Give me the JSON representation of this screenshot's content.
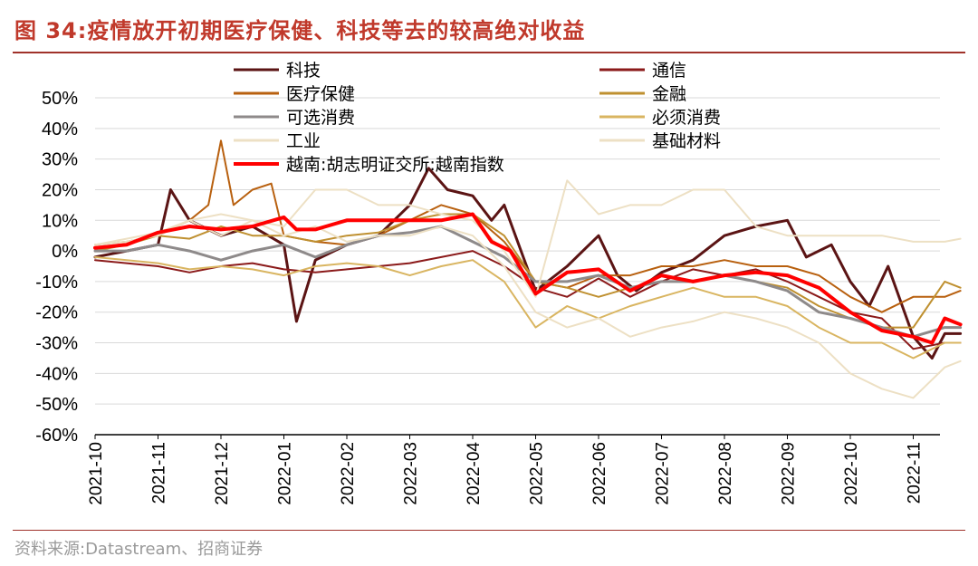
{
  "figure": {
    "title": "图 34:疫情放开初期医疗保健、科技等去的较高绝对收益",
    "source": "资料来源:Datastream、招商证券"
  },
  "colors": {
    "title": "#c0392b",
    "rule": "#a0322a"
  },
  "chart_data": {
    "type": "line",
    "title": "疫情放开初期医疗保健、科技等去的较高绝对收益",
    "xlabel": "",
    "ylabel": "",
    "ylim": [
      -60,
      50
    ],
    "y_ticks": [
      50,
      40,
      30,
      20,
      10,
      0,
      -10,
      -20,
      -30,
      -40,
      -50,
      -60
    ],
    "y_tick_labels": [
      "50%",
      "40%",
      "30%",
      "20%",
      "10%",
      "0%",
      "-10%",
      "-20%",
      "-30%",
      "-40%",
      "-50%",
      "-60%"
    ],
    "x_tick_labels": [
      "2021-10",
      "2021-11",
      "2021-12",
      "2022-01",
      "2022-02",
      "2022-03",
      "2022-04",
      "2022-05",
      "2022-06",
      "2022-07",
      "2022-08",
      "2022-09",
      "2022-10",
      "2022-11"
    ],
    "x_range_months": [
      0,
      13.75
    ],
    "grid": "horizontal",
    "legend_position": "top",
    "series": [
      {
        "name": "科技",
        "color": "#5b1414",
        "width": 3,
        "x": [
          0,
          0.5,
          1.0,
          1.2,
          1.5,
          2.0,
          2.5,
          3.0,
          3.2,
          3.5,
          4.0,
          4.5,
          5.0,
          5.3,
          5.6,
          6.0,
          6.3,
          6.5,
          7.0,
          7.5,
          8.0,
          8.3,
          8.6,
          9.0,
          9.5,
          10.0,
          10.5,
          11.0,
          11.3,
          11.7,
          12.0,
          12.3,
          12.6,
          13.0,
          13.3,
          13.5,
          13.75
        ],
        "values": [
          -2,
          0,
          2,
          20,
          10,
          5,
          8,
          2,
          -23,
          -3,
          2,
          5,
          15,
          27,
          20,
          18,
          10,
          15,
          -13,
          -5,
          5,
          -8,
          -13,
          -7,
          -3,
          5,
          8,
          10,
          -2,
          2,
          -10,
          -18,
          -5,
          -28,
          -35,
          -27,
          -27
        ]
      },
      {
        "name": "通信",
        "color": "#8b1a1a",
        "width": 2,
        "x": [
          0,
          0.5,
          1.0,
          1.5,
          2.0,
          2.5,
          3.0,
          3.5,
          4.0,
          4.5,
          5.0,
          5.5,
          6.0,
          6.5,
          7.0,
          7.5,
          8.0,
          8.5,
          9.0,
          9.5,
          10.0,
          10.5,
          11.0,
          11.5,
          12.0,
          12.5,
          13.0,
          13.5,
          13.75
        ],
        "values": [
          -3,
          -4,
          -5,
          -7,
          -5,
          -4,
          -6,
          -7,
          -6,
          -5,
          -4,
          -2,
          0,
          -5,
          -12,
          -15,
          -9,
          -15,
          -10,
          -6,
          -8,
          -6,
          -10,
          -15,
          -20,
          -22,
          -32,
          -30,
          -30
        ]
      },
      {
        "name": "医疗保健",
        "color": "#b8600f",
        "width": 2,
        "x": [
          0,
          0.5,
          1.0,
          1.5,
          1.8,
          2.0,
          2.2,
          2.5,
          2.8,
          3.0,
          3.5,
          4.0,
          4.5,
          5.0,
          5.5,
          6.0,
          6.5,
          7.0,
          7.5,
          8.0,
          8.5,
          9.0,
          9.5,
          10.0,
          10.5,
          11.0,
          11.5,
          12.0,
          12.5,
          13.0,
          13.5,
          13.75
        ],
        "values": [
          2,
          3,
          5,
          10,
          15,
          36,
          15,
          20,
          22,
          5,
          3,
          2,
          5,
          10,
          15,
          12,
          3,
          -10,
          -12,
          -8,
          -8,
          -5,
          -5,
          -3,
          -5,
          -5,
          -8,
          -15,
          -20,
          -15,
          -15,
          -13
        ]
      },
      {
        "name": "金融",
        "color": "#bf9030",
        "width": 2,
        "x": [
          0,
          0.5,
          1.0,
          1.5,
          2.0,
          2.5,
          3.0,
          3.5,
          4.0,
          4.5,
          5.0,
          5.5,
          6.0,
          6.5,
          7.0,
          7.5,
          8.0,
          8.5,
          9.0,
          9.5,
          10.0,
          10.5,
          11.0,
          11.5,
          12.0,
          12.5,
          13.0,
          13.5,
          13.75
        ],
        "values": [
          0,
          2,
          5,
          4,
          8,
          5,
          5,
          3,
          5,
          6,
          10,
          12,
          12,
          5,
          -10,
          -12,
          -15,
          -12,
          -10,
          -10,
          -8,
          -10,
          -12,
          -18,
          -22,
          -25,
          -25,
          -10,
          -12
        ]
      },
      {
        "name": "可选消费",
        "color": "#8e8a8a",
        "width": 3,
        "x": [
          0,
          0.5,
          1.0,
          1.5,
          2.0,
          2.5,
          3.0,
          3.5,
          4.0,
          4.5,
          5.0,
          5.5,
          6.0,
          6.5,
          7.0,
          7.5,
          8.0,
          8.5,
          9.0,
          9.5,
          10.0,
          10.5,
          11.0,
          11.5,
          12.0,
          12.5,
          13.0,
          13.5,
          13.75
        ],
        "values": [
          0,
          0,
          2,
          0,
          -3,
          0,
          2,
          -2,
          2,
          5,
          6,
          8,
          3,
          -2,
          -10,
          -10,
          -8,
          -12,
          -10,
          -10,
          -8,
          -10,
          -13,
          -20,
          -22,
          -25,
          -28,
          -25,
          -25
        ]
      },
      {
        "name": "必须消费",
        "color": "#d9b561",
        "width": 2,
        "x": [
          0,
          0.5,
          1.0,
          1.5,
          2.0,
          2.5,
          3.0,
          3.5,
          4.0,
          4.5,
          5.0,
          5.5,
          6.0,
          6.5,
          7.0,
          7.5,
          8.0,
          8.5,
          9.0,
          9.5,
          10.0,
          10.5,
          11.0,
          11.5,
          12.0,
          12.5,
          13.0,
          13.5,
          13.75
        ],
        "values": [
          -2,
          -3,
          -4,
          -6,
          -5,
          -6,
          -8,
          -5,
          -4,
          -5,
          -8,
          -5,
          -3,
          -10,
          -25,
          -18,
          -22,
          -18,
          -15,
          -12,
          -15,
          -15,
          -18,
          -25,
          -30,
          -30,
          -35,
          -30,
          -30
        ]
      },
      {
        "name": "工业",
        "color": "#ede0c4",
        "width": 2,
        "x": [
          0,
          0.5,
          1.0,
          1.5,
          2.0,
          2.5,
          3.0,
          3.5,
          4.0,
          4.5,
          5.0,
          5.5,
          6.0,
          6.5,
          7.0,
          7.5,
          8.0,
          8.5,
          9.0,
          9.5,
          10.0,
          10.5,
          11.0,
          11.5,
          12.0,
          12.5,
          13.0,
          13.5,
          13.75
        ],
        "values": [
          2,
          4,
          6,
          10,
          5,
          10,
          5,
          8,
          3,
          5,
          5,
          8,
          5,
          -5,
          -20,
          -25,
          -22,
          -28,
          -25,
          -23,
          -20,
          -22,
          -25,
          -30,
          -40,
          -45,
          -48,
          -38,
          -36
        ]
      },
      {
        "name": "基础材料",
        "color": "#ede0c4",
        "width": 2,
        "x": [
          0,
          0.5,
          1.0,
          1.5,
          2.0,
          2.5,
          3.0,
          3.5,
          4.0,
          4.5,
          5.0,
          5.5,
          6.0,
          6.5,
          7.0,
          7.5,
          8.0,
          8.5,
          9.0,
          9.5,
          10.0,
          10.5,
          11.0,
          11.5,
          12.0,
          12.5,
          13.0,
          13.5,
          13.75
        ],
        "values": [
          2,
          3,
          5,
          10,
          12,
          10,
          8,
          20,
          20,
          15,
          15,
          12,
          10,
          0,
          -15,
          23,
          12,
          15,
          15,
          20,
          20,
          8,
          5,
          5,
          5,
          5,
          3,
          3,
          4
        ]
      },
      {
        "name": "越南:胡志明证交所:越南指数",
        "color": "#ff0000",
        "width": 4,
        "x": [
          0,
          0.5,
          1.0,
          1.5,
          2.0,
          2.5,
          3.0,
          3.2,
          3.5,
          4.0,
          4.5,
          5.0,
          5.5,
          6.0,
          6.3,
          6.6,
          7.0,
          7.5,
          8.0,
          8.5,
          9.0,
          9.5,
          10.0,
          10.5,
          11.0,
          11.5,
          12.0,
          12.5,
          13.0,
          13.3,
          13.5,
          13.75
        ],
        "values": [
          1,
          2,
          6,
          8,
          7,
          8,
          11,
          7,
          7,
          10,
          10,
          10,
          10,
          12,
          3,
          0,
          -14,
          -7,
          -6,
          -13,
          -8,
          -10,
          -8,
          -7,
          -8,
          -12,
          -20,
          -26,
          -28,
          -30,
          -22,
          -24
        ]
      }
    ]
  }
}
